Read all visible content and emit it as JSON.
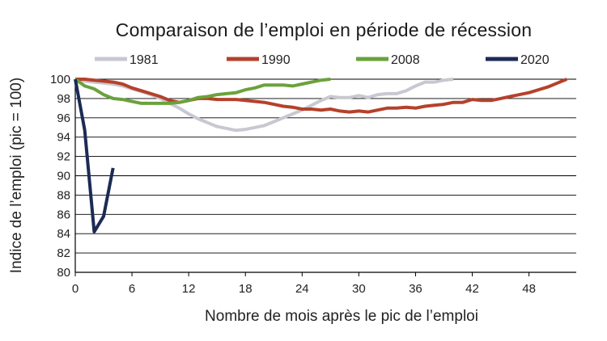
{
  "chart_data": {
    "type": "line",
    "title": "Comparaison de l’emploi en période de récession",
    "xlabel": "Nombre de mois après le pic de l’emploi",
    "ylabel": "Indice de l’emploi (pic = 100)",
    "xlim": [
      0,
      53
    ],
    "ylim": [
      80,
      100
    ],
    "xticks": [
      0,
      6,
      12,
      18,
      24,
      30,
      36,
      42,
      48
    ],
    "yticks": [
      80,
      82,
      84,
      86,
      88,
      90,
      92,
      94,
      96,
      98,
      100
    ],
    "grid": "horizontal",
    "legend_position": "top",
    "series": [
      {
        "name": "1981",
        "color": "#c8c8d2",
        "x": [
          0,
          1,
          2,
          3,
          4,
          5,
          6,
          7,
          8,
          9,
          10,
          11,
          12,
          13,
          14,
          15,
          16,
          17,
          18,
          19,
          20,
          21,
          22,
          23,
          24,
          25,
          26,
          27,
          28,
          29,
          30,
          31,
          32,
          33,
          34,
          35,
          36,
          37,
          38,
          39,
          40
        ],
        "y": [
          100,
          99.8,
          99.7,
          99.6,
          99.5,
          99.3,
          99.0,
          98.7,
          98.4,
          98.0,
          97.5,
          97.0,
          96.4,
          95.9,
          95.5,
          95.1,
          94.9,
          94.7,
          94.8,
          95.0,
          95.2,
          95.6,
          96.0,
          96.4,
          96.8,
          97.3,
          97.8,
          98.2,
          98.1,
          98.1,
          98.3,
          98.1,
          98.4,
          98.5,
          98.5,
          98.8,
          99.3,
          99.7,
          99.7,
          99.9,
          100
        ]
      },
      {
        "name": "1990",
        "color": "#b5412b",
        "x": [
          0,
          1,
          2,
          3,
          4,
          5,
          6,
          7,
          8,
          9,
          10,
          11,
          12,
          13,
          14,
          15,
          16,
          17,
          18,
          19,
          20,
          21,
          22,
          23,
          24,
          25,
          26,
          27,
          28,
          29,
          30,
          31,
          32,
          33,
          34,
          35,
          36,
          37,
          38,
          39,
          40,
          41,
          42,
          43,
          44,
          45,
          46,
          47,
          48,
          49,
          50,
          51,
          52
        ],
        "y": [
          100,
          100,
          99.9,
          99.8,
          99.7,
          99.5,
          99.1,
          98.8,
          98.5,
          98.2,
          97.8,
          97.6,
          97.8,
          98.0,
          98.0,
          97.9,
          97.9,
          97.9,
          97.8,
          97.7,
          97.6,
          97.4,
          97.2,
          97.1,
          96.9,
          96.9,
          96.8,
          96.9,
          96.7,
          96.6,
          96.7,
          96.6,
          96.8,
          97.0,
          97.0,
          97.1,
          97.0,
          97.2,
          97.3,
          97.4,
          97.6,
          97.6,
          97.9,
          97.8,
          97.8,
          98.0,
          98.2,
          98.4,
          98.6,
          98.9,
          99.2,
          99.6,
          100
        ]
      },
      {
        "name": "2008",
        "color": "#6aa23c",
        "x": [
          0,
          1,
          2,
          3,
          4,
          5,
          6,
          7,
          8,
          9,
          10,
          11,
          12,
          13,
          14,
          15,
          16,
          17,
          18,
          19,
          20,
          21,
          22,
          23,
          24,
          25,
          26,
          27
        ],
        "y": [
          100,
          99.3,
          99.0,
          98.4,
          98.0,
          97.9,
          97.7,
          97.5,
          97.5,
          97.5,
          97.5,
          97.6,
          97.8,
          98.1,
          98.2,
          98.4,
          98.5,
          98.6,
          98.9,
          99.1,
          99.4,
          99.4,
          99.4,
          99.3,
          99.5,
          99.7,
          99.9,
          100
        ]
      },
      {
        "name": "2020",
        "color": "#1b2b55",
        "x": [
          0,
          1,
          2,
          3,
          4
        ],
        "y": [
          100,
          94.7,
          84.2,
          85.8,
          90.8
        ]
      }
    ]
  }
}
